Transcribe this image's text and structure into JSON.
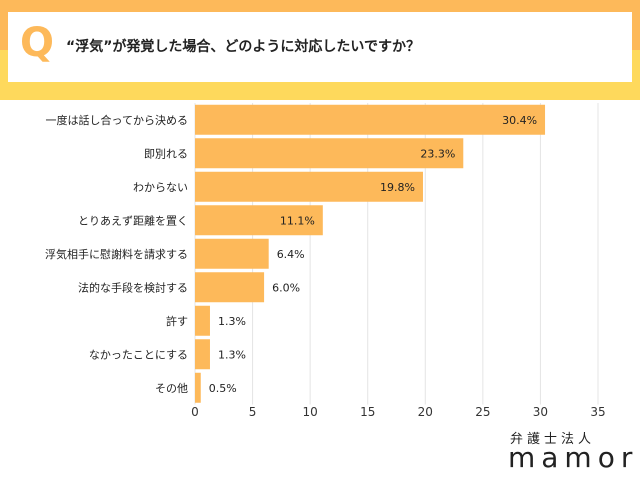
{
  "header": {
    "q": "Q",
    "question": "“浮気”が発覚した場合、どのように対応したいですか？"
  },
  "brand": {
    "sub": "弁護士法人",
    "name": "mamori"
  },
  "colors": {
    "bar": "#fdb95a",
    "grid": "#e4e4e4"
  },
  "chart_data": {
    "type": "bar",
    "orientation": "horizontal",
    "title": "“浮気”が発覚した場合、どのように対応したいですか？",
    "categories": [
      "一度は話し合ってから決める",
      "即別れる",
      "わからない",
      "とりあえず距離を置く",
      "浮気相手に慰謝料を請求する",
      "法的な手段を検討する",
      "許す",
      "なかったことにする",
      "その他"
    ],
    "values": [
      30.4,
      23.3,
      19.8,
      11.1,
      6.4,
      6.0,
      1.3,
      1.3,
      0.5
    ],
    "labels": [
      "30.4%",
      "23.3%",
      "19.8%",
      "11.1%",
      "6.4%",
      "6.0%",
      "1.3%",
      "1.3%",
      "0.5%"
    ],
    "xlim": [
      0,
      35
    ],
    "xticks": [
      0,
      5,
      10,
      15,
      20,
      25,
      30,
      35
    ],
    "grid": true
  }
}
